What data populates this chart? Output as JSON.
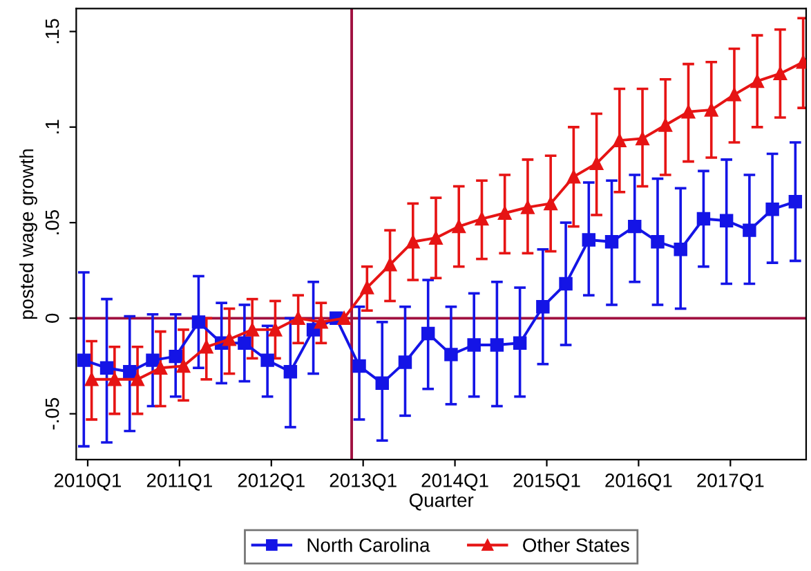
{
  "chart_data": {
    "type": "line",
    "xlabel": "Quarter",
    "ylabel": "posted wage growth",
    "ylim": [
      -0.074,
      0.162
    ],
    "categories": [
      "2010Q1",
      null,
      null,
      null,
      "2011Q1",
      null,
      null,
      null,
      "2012Q1",
      null,
      null,
      null,
      "2013Q1",
      null,
      null,
      null,
      "2014Q1",
      null,
      null,
      null,
      "2015Q1",
      null,
      null,
      null,
      "2016Q1",
      null,
      null,
      null,
      "2017Q1",
      null,
      null,
      null
    ],
    "yticks": [
      {
        "value": -0.05,
        "label": "-.05"
      },
      0,
      {
        "value": 0.05,
        "label": ".05"
      },
      {
        "value": 0.1,
        "label": ".1"
      },
      {
        "value": 0.15,
        "label": ".15"
      }
    ],
    "grid": false,
    "legend": "bottom",
    "ref_lines": [
      {
        "axis": "y",
        "value": 0,
        "color": "#a01040"
      }
    ],
    "series": [
      {
        "name": "North Carolina",
        "color": "#1414e6",
        "marker": "square",
        "values": [
          -0.022,
          -0.026,
          -0.028,
          -0.022,
          -0.02,
          -0.002,
          -0.013,
          -0.013,
          -0.022,
          -0.028,
          -0.006,
          0,
          -0.025,
          -0.034,
          -0.023,
          -0.008,
          -0.019,
          -0.014,
          -0.014,
          -0.013,
          0.006,
          0.018,
          0.041,
          0.04,
          0.048,
          0.04,
          0.036,
          0.052,
          0.051,
          0.046,
          0.057,
          0.061
        ],
        "errors": [
          [
            -0.067,
            0.024
          ],
          [
            -0.065,
            0.01
          ],
          [
            -0.059,
            0.001
          ],
          [
            -0.046,
            0.002
          ],
          [
            -0.041,
            0.002
          ],
          [
            -0.026,
            0.022
          ],
          [
            -0.034,
            0.008
          ],
          [
            -0.033,
            0.007
          ],
          [
            -0.041,
            -0.004
          ],
          [
            -0.057,
            0.0
          ],
          [
            -0.029,
            0.019
          ],
          null,
          [
            -0.053,
            0.006
          ],
          [
            -0.064,
            -0.002
          ],
          [
            -0.051,
            0.006
          ],
          [
            -0.037,
            0.02
          ],
          [
            -0.045,
            0.006
          ],
          [
            -0.041,
            0.013
          ],
          [
            -0.046,
            0.019
          ],
          [
            -0.041,
            0.016
          ],
          [
            -0.024,
            0.036
          ],
          [
            -0.014,
            0.05
          ],
          [
            0.012,
            0.071
          ],
          [
            0.007,
            0.072
          ],
          [
            0.019,
            0.075
          ],
          [
            0.007,
            0.073
          ],
          [
            0.005,
            0.068
          ],
          [
            0.027,
            0.077
          ],
          [
            0.018,
            0.083
          ],
          [
            0.018,
            0.075
          ],
          [
            0.029,
            0.086
          ],
          [
            0.03,
            0.092
          ]
        ]
      },
      {
        "name": "Other States",
        "color": "#e61414",
        "marker": "triangle",
        "values": [
          -0.032,
          -0.032,
          -0.032,
          -0.026,
          -0.025,
          -0.015,
          -0.011,
          -0.006,
          -0.006,
          0,
          -0.002,
          0,
          0.016,
          0.028,
          0.04,
          0.042,
          0.048,
          0.052,
          0.055,
          0.058,
          0.06,
          0.074,
          0.081,
          0.093,
          0.094,
          0.101,
          0.108,
          0.109,
          0.117,
          0.124,
          0.128,
          0.134
        ],
        "errors": [
          [
            -0.053,
            -0.012
          ],
          [
            -0.05,
            -0.015
          ],
          [
            -0.05,
            -0.015
          ],
          [
            -0.046,
            -0.007
          ],
          [
            -0.043,
            -0.006
          ],
          [
            -0.032,
            0.0
          ],
          [
            -0.029,
            0.005
          ],
          [
            -0.021,
            0.01
          ],
          [
            -0.021,
            0.009
          ],
          [
            -0.013,
            0.012
          ],
          [
            -0.013,
            0.008
          ],
          null,
          [
            0.004,
            0.027
          ],
          [
            0.009,
            0.046
          ],
          [
            0.02,
            0.06
          ],
          [
            0.021,
            0.063
          ],
          [
            0.027,
            0.069
          ],
          [
            0.031,
            0.072
          ],
          [
            0.034,
            0.075
          ],
          [
            0.034,
            0.083
          ],
          [
            0.035,
            0.085
          ],
          [
            0.048,
            0.1
          ],
          [
            0.054,
            0.107
          ],
          [
            0.066,
            0.12
          ],
          [
            0.069,
            0.12
          ],
          [
            0.075,
            0.125
          ],
          [
            0.082,
            0.133
          ],
          [
            0.084,
            0.134
          ],
          [
            0.092,
            0.141
          ],
          [
            0.1,
            0.148
          ],
          [
            0.105,
            0.151
          ],
          [
            0.11,
            0.157
          ]
        ]
      }
    ]
  }
}
